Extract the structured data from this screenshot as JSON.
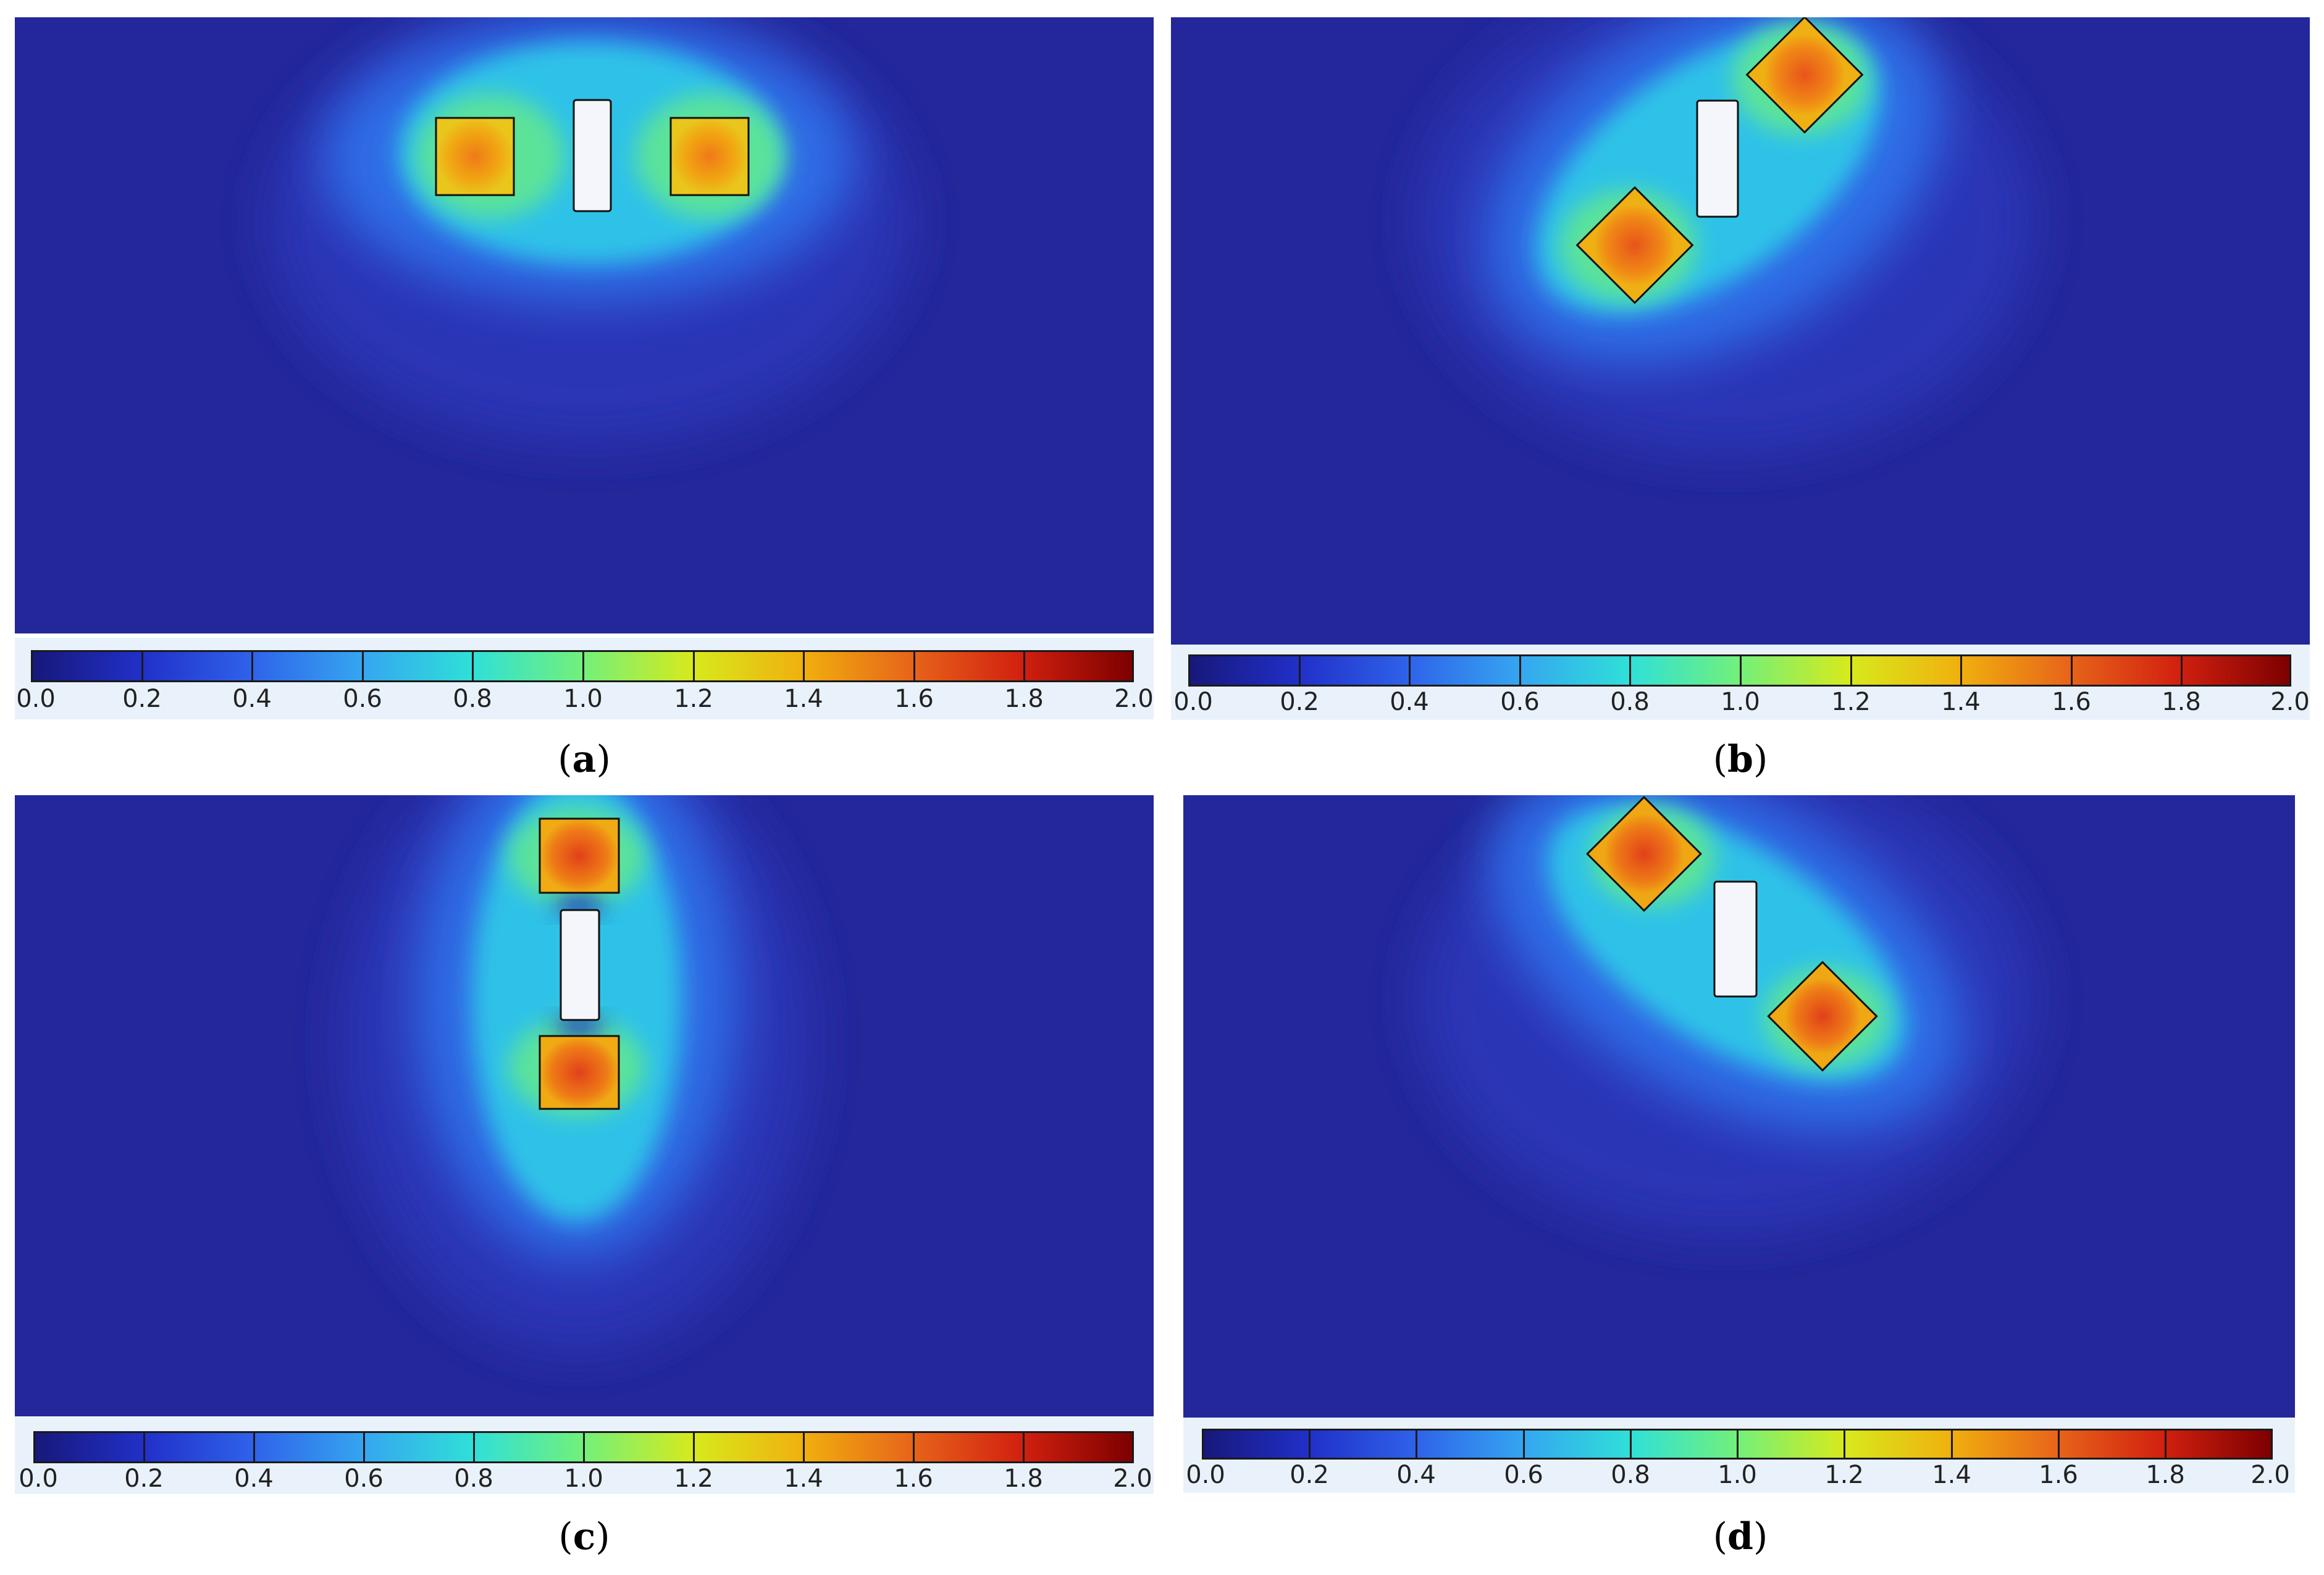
{
  "colorbar": {
    "tick_labels": [
      "0.0",
      "0.2",
      "0.4",
      "0.6",
      "0.8",
      "1.0",
      "1.2",
      "1.4",
      "1.6",
      "1.8",
      "2.0"
    ],
    "range": [
      0.0,
      2.0
    ],
    "colors": [
      "#17187a",
      "#2130c9",
      "#2f63ea",
      "#35a6f0",
      "#2fe0d8",
      "#72f07a",
      "#d7ea1c",
      "#f0b00e",
      "#e7641a",
      "#d1200f",
      "#7d0000"
    ]
  },
  "panels": [
    {
      "id": "a",
      "caption_letter": "a",
      "layout": "horizontal"
    },
    {
      "id": "b",
      "caption_letter": "b",
      "layout": "diagonal-rising"
    },
    {
      "id": "c",
      "caption_letter": "c",
      "layout": "vertical"
    },
    {
      "id": "d",
      "caption_letter": "d",
      "layout": "diagonal-falling"
    }
  ],
  "colors": {
    "background_field": "#23279a",
    "hot_region": "#f0821e",
    "obstacle_fill": "#f4f6fb"
  }
}
